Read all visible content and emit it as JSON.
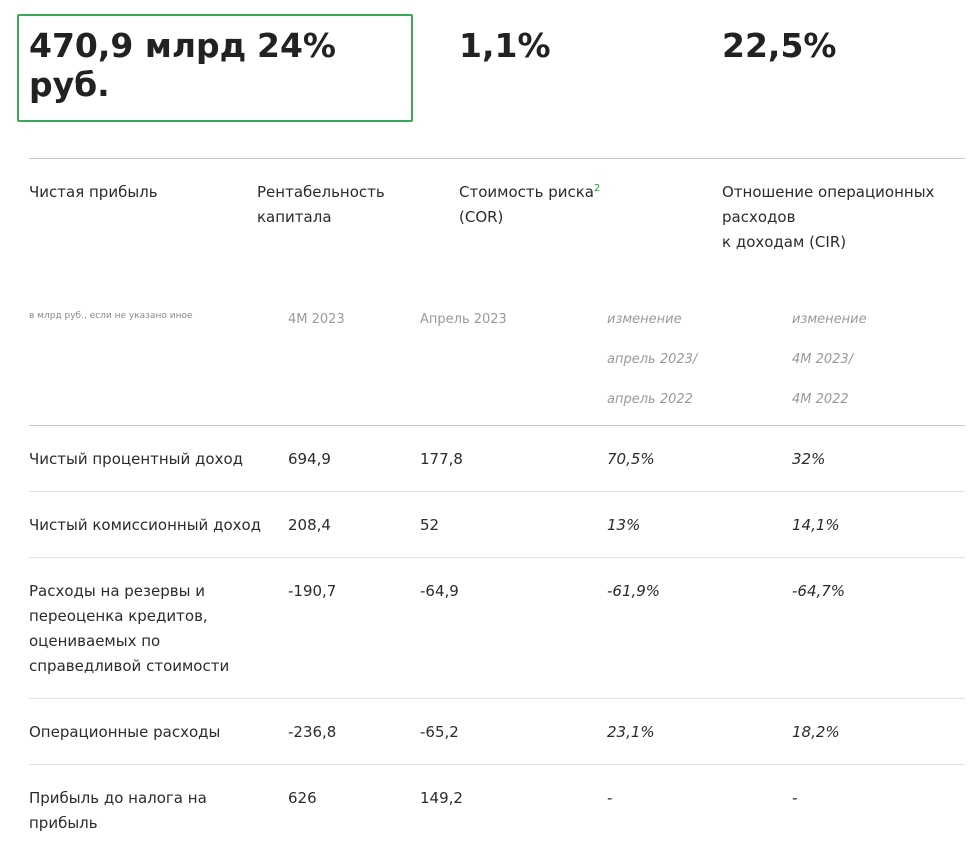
{
  "kpis": [
    {
      "value": "470,9 млрд руб.",
      "label": "Чистая прибыль",
      "sup": ""
    },
    {
      "value": "24%",
      "label": "Рентабельность капитала",
      "sup": ""
    },
    {
      "value": "1,1%",
      "label": "Стоимость риска",
      "sup": "2",
      "label_line2": "(COR)"
    },
    {
      "value": "22,5%",
      "label": "Отношение операционных расходов к доходам (CIR)",
      "sup": ""
    }
  ],
  "kpi_labels": {
    "net_profit": "Чистая прибыль",
    "roe_line1": "Рентабельность",
    "roe_line2": "капитала",
    "cor_line1": "Стоимость риска",
    "cor_sup": "2",
    "cor_line2": "(COR)",
    "cir_line1": "Отношение операционных",
    "cir_line2": "расходов",
    "cir_line3": "к доходам (CIR)"
  },
  "kpi_values": {
    "net_profit_line1": "470,9 млрд",
    "net_profit_line2": "руб.",
    "roe": "24%",
    "cor": "1,1%",
    "cir": "22,5%"
  },
  "table": {
    "note": "в млрд руб., если не указано иное",
    "headers": {
      "col1": "4M 2023",
      "col2": "Апрель 2023",
      "col3_line1": "изменение",
      "col3_line2": "апрель 2023/",
      "col3_line3": "апрель 2022",
      "col4_line1": "изменение",
      "col4_line2": "4M 2023/",
      "col4_line3": "4M 2022"
    },
    "rows": [
      {
        "label_lines": [
          "Чистый процентный доход"
        ],
        "m4_2023": "694,9",
        "apr_2023": "177,8",
        "chg_apr": "70,5%",
        "chg_4m": "32%"
      },
      {
        "label_lines": [
          "Чистый комиссионный доход"
        ],
        "m4_2023": "208,4",
        "apr_2023": "52",
        "chg_apr": "13%",
        "chg_4m": "14,1%"
      },
      {
        "label_lines": [
          "Расходы на резервы и",
          "переоценка кредитов,",
          "оцениваемых по",
          "справедливой стоимости"
        ],
        "m4_2023": "-190,7",
        "apr_2023": "-64,9",
        "chg_apr": "-61,9%",
        "chg_4m": "-64,7%"
      },
      {
        "label_lines": [
          "Операционные расходы"
        ],
        "m4_2023": "-236,8",
        "apr_2023": "-65,2",
        "chg_apr": "23,1%",
        "chg_4m": "18,2%"
      },
      {
        "label_lines": [
          "Прибыль до налога на",
          "прибыль"
        ],
        "m4_2023": "626",
        "apr_2023": "149,2",
        "chg_apr": "-",
        "chg_4m": "-"
      }
    ]
  },
  "colors": {
    "accent": "#21a038",
    "border_highlight": "#3aa857",
    "rule": "#c7c7c7"
  }
}
